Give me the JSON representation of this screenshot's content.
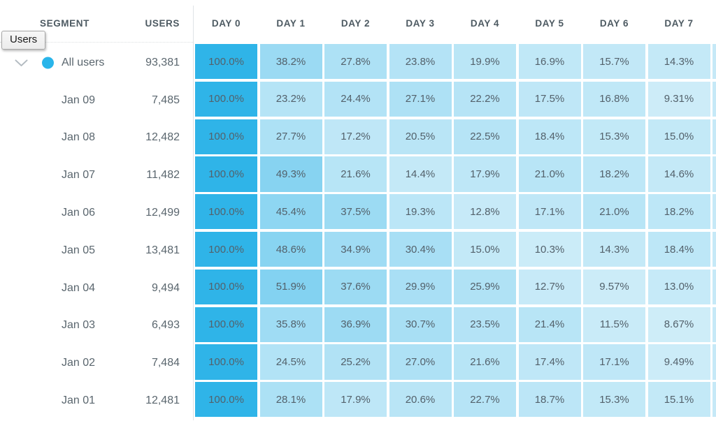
{
  "tooltip": {
    "label": "Users"
  },
  "table": {
    "segment_header": "SEGMENT",
    "users_header": "USERS",
    "day_headers": [
      "DAY 0",
      "DAY 1",
      "DAY 2",
      "DAY 3",
      "DAY 4",
      "DAY 5",
      "DAY 6",
      "DAY 7"
    ]
  },
  "colors": {
    "heat_low": "#ddf2fa",
    "heat_high": "#2fb4e8",
    "segment_dot": "#29b5ea",
    "chevron": "#b3bbc1",
    "overflow_column": "#c6e9f7"
  },
  "chart_data": {
    "type": "heatmap",
    "columns": [
      "DAY 0",
      "DAY 1",
      "DAY 2",
      "DAY 3",
      "DAY 4",
      "DAY 5",
      "DAY 6",
      "DAY 7"
    ],
    "value_range": [
      0,
      100
    ],
    "rows": [
      {
        "segment": "All users",
        "users": "93,381",
        "expandable": true,
        "values": [
          "100.0%",
          "38.2%",
          "27.8%",
          "23.8%",
          "19.9%",
          "16.9%",
          "15.7%",
          "14.3%"
        ]
      },
      {
        "segment": "Jan 09",
        "users": "7,485",
        "expandable": false,
        "values": [
          "100.0%",
          "23.2%",
          "24.4%",
          "27.1%",
          "22.2%",
          "17.5%",
          "16.8%",
          "9.31%"
        ]
      },
      {
        "segment": "Jan 08",
        "users": "12,482",
        "expandable": false,
        "values": [
          "100.0%",
          "27.7%",
          "17.2%",
          "20.5%",
          "22.5%",
          "18.4%",
          "15.3%",
          "15.0%"
        ]
      },
      {
        "segment": "Jan 07",
        "users": "11,482",
        "expandable": false,
        "values": [
          "100.0%",
          "49.3%",
          "21.6%",
          "14.4%",
          "17.9%",
          "21.0%",
          "18.2%",
          "14.6%"
        ]
      },
      {
        "segment": "Jan 06",
        "users": "12,499",
        "expandable": false,
        "values": [
          "100.0%",
          "45.4%",
          "37.5%",
          "19.3%",
          "12.8%",
          "17.1%",
          "21.0%",
          "18.2%"
        ]
      },
      {
        "segment": "Jan 05",
        "users": "13,481",
        "expandable": false,
        "values": [
          "100.0%",
          "48.6%",
          "34.9%",
          "30.4%",
          "15.0%",
          "10.3%",
          "14.3%",
          "18.4%"
        ]
      },
      {
        "segment": "Jan 04",
        "users": "9,494",
        "expandable": false,
        "values": [
          "100.0%",
          "51.9%",
          "37.6%",
          "29.9%",
          "25.9%",
          "12.7%",
          "9.57%",
          "13.0%"
        ]
      },
      {
        "segment": "Jan 03",
        "users": "6,493",
        "expandable": false,
        "values": [
          "100.0%",
          "35.8%",
          "36.9%",
          "30.7%",
          "23.5%",
          "21.4%",
          "11.5%",
          "8.67%"
        ]
      },
      {
        "segment": "Jan 02",
        "users": "7,484",
        "expandable": false,
        "values": [
          "100.0%",
          "24.5%",
          "25.2%",
          "27.0%",
          "21.6%",
          "17.4%",
          "17.1%",
          "9.49%"
        ]
      },
      {
        "segment": "Jan 01",
        "users": "12,481",
        "expandable": false,
        "values": [
          "100.0%",
          "28.1%",
          "17.9%",
          "20.6%",
          "22.7%",
          "18.7%",
          "15.3%",
          "15.1%"
        ]
      }
    ]
  }
}
